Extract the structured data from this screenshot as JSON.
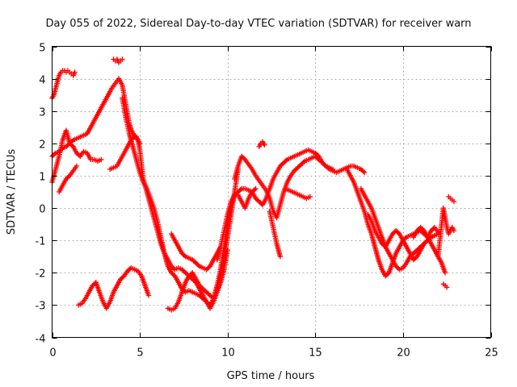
{
  "chart_data": {
    "type": "scatter",
    "title": "Day 055 of 2022, Sidereal Day-to-day VTEC variation (SDTVAR) for receiver warn",
    "xlabel": "GPS time / hours",
    "ylabel": "SDTVAR / TECUs",
    "xlim": [
      0,
      25
    ],
    "ylim": [
      -4,
      5
    ],
    "xticks": [
      0,
      5,
      10,
      15,
      20,
      25
    ],
    "yticks": [
      -4,
      -3,
      -2,
      -1,
      0,
      1,
      2,
      3,
      4,
      5
    ],
    "xtick_labels": [
      "0",
      "5",
      "10",
      "15",
      "20",
      "25"
    ],
    "ytick_labels": [
      "-4",
      "-3",
      "-2",
      "-1",
      "0",
      "1",
      "2",
      "3",
      "4",
      "5"
    ],
    "grid": true,
    "marker": "+",
    "color": "#ff0000",
    "series": [
      {
        "name": "trace-1",
        "x": [
          0.0,
          0.1,
          0.2,
          0.3,
          0.4,
          0.5,
          0.6,
          0.7,
          0.8,
          0.9,
          1.0,
          1.1,
          1.2,
          1.3
        ],
        "y": [
          3.4,
          3.5,
          3.7,
          3.9,
          4.1,
          4.2,
          4.25,
          4.25,
          4.2,
          4.25,
          4.2,
          4.15,
          4.1,
          4.2
        ]
      },
      {
        "name": "trace-2",
        "x": [
          0.0,
          0.2,
          0.4,
          0.6,
          0.8,
          1.0,
          1.2,
          1.4,
          1.6,
          1.8,
          2.0,
          2.2,
          2.4,
          2.6,
          2.8,
          3.0,
          3.2,
          3.4,
          3.6,
          3.8,
          4.0,
          4.2,
          4.4,
          4.6,
          4.8,
          5.0
        ],
        "y": [
          1.6,
          1.7,
          1.75,
          1.85,
          1.9,
          2.0,
          2.1,
          2.15,
          2.2,
          2.25,
          2.3,
          2.5,
          2.7,
          2.9,
          3.1,
          3.3,
          3.5,
          3.7,
          3.85,
          4.0,
          3.8,
          3.2,
          2.6,
          2.3,
          2.2,
          2.0
        ]
      },
      {
        "name": "trace-3",
        "x": [
          0.0,
          0.2,
          0.4,
          0.6,
          0.8,
          1.0,
          1.2,
          1.4,
          1.6,
          1.8,
          2.0,
          2.2,
          2.4,
          2.6,
          2.8
        ],
        "y": [
          0.8,
          1.2,
          1.6,
          2.1,
          2.4,
          2.0,
          1.9,
          1.7,
          1.6,
          1.75,
          1.7,
          1.5,
          1.5,
          1.45,
          1.5
        ]
      },
      {
        "name": "trace-4",
        "x": [
          0.4,
          0.6,
          0.8,
          1.0,
          1.2,
          1.4
        ],
        "y": [
          0.5,
          0.7,
          0.9,
          1.0,
          1.15,
          1.3
        ]
      },
      {
        "name": "trace-5",
        "x": [
          3.5,
          3.6,
          3.7,
          3.8,
          3.9,
          4.0
        ],
        "y": [
          4.6,
          4.55,
          4.6,
          4.5,
          4.55,
          4.6
        ]
      },
      {
        "name": "trace-6",
        "x": [
          3.3,
          3.5,
          3.7,
          3.9,
          4.1,
          4.3,
          4.5,
          4.7,
          4.9,
          5.0,
          5.1,
          5.2,
          5.4,
          5.6,
          5.8,
          6.0,
          6.2,
          6.4,
          6.6,
          6.8,
          7.0,
          7.2,
          7.4,
          7.6,
          7.8,
          8.0,
          8.2,
          8.4,
          8.6,
          8.8,
          9.0,
          9.2,
          9.4,
          9.6,
          9.8,
          10.0,
          10.2,
          10.4,
          10.6,
          10.8,
          11.0,
          11.2,
          11.4,
          11.6
        ],
        "y": [
          1.2,
          1.25,
          1.3,
          1.5,
          1.7,
          1.9,
          2.1,
          2.2,
          2.1,
          1.8,
          1.3,
          0.9,
          0.5,
          0.1,
          -0.3,
          -0.7,
          -1.1,
          -1.4,
          -1.6,
          -1.8,
          -1.9,
          -1.85,
          -1.9,
          -2.0,
          -2.1,
          -2.2,
          -2.3,
          -2.5,
          -2.7,
          -2.9,
          -3.0,
          -2.8,
          -2.4,
          -1.9,
          -1.2,
          -0.5,
          0.1,
          0.4,
          0.4,
          0.2,
          0.0,
          0.3,
          0.5,
          0.6
        ]
      },
      {
        "name": "trace-7",
        "x": [
          4.0,
          4.2,
          4.4,
          4.6,
          4.8,
          5.0,
          5.2,
          5.4,
          5.6,
          5.8,
          6.0,
          6.2,
          6.4,
          6.6,
          6.8,
          7.0,
          7.2,
          7.4,
          7.6,
          7.8,
          8.0,
          8.2,
          8.4,
          8.6,
          8.8,
          9.0,
          9.2,
          9.4,
          9.6,
          9.8,
          10.0,
          10.2,
          10.4,
          10.6
        ],
        "y": [
          3.4,
          2.8,
          2.3,
          1.9,
          1.5,
          1.1,
          0.8,
          0.6,
          0.3,
          0.0,
          -0.4,
          -0.9,
          -1.4,
          -1.8,
          -2.0,
          -2.1,
          -2.3,
          -2.5,
          -2.6,
          -2.55,
          -2.6,
          -2.65,
          -2.7,
          -2.8,
          -2.9,
          -3.1,
          -2.9,
          -2.6,
          -2.1,
          -1.6,
          -0.9,
          -0.2,
          0.5,
          1.2
        ]
      },
      {
        "name": "trace-8",
        "x": [
          1.5,
          1.7,
          1.9,
          2.1,
          2.3,
          2.5,
          2.7,
          2.9,
          3.1,
          3.3,
          3.5,
          3.7,
          3.9,
          4.1,
          4.3,
          4.5,
          4.7,
          4.9,
          5.1,
          5.3,
          5.5
        ],
        "y": [
          -3.0,
          -2.95,
          -2.8,
          -2.6,
          -2.4,
          -2.3,
          -2.6,
          -2.9,
          -3.1,
          -2.9,
          -2.6,
          -2.4,
          -2.2,
          -2.1,
          -1.95,
          -1.85,
          -1.9,
          -1.95,
          -2.1,
          -2.4,
          -2.7
        ]
      },
      {
        "name": "trace-9",
        "x": [
          6.6,
          6.8,
          7.0,
          7.2,
          7.4,
          7.6,
          7.8,
          8.0,
          8.2,
          8.4,
          8.6,
          8.8,
          9.0,
          9.2,
          9.4,
          9.6,
          9.8,
          10.0
        ],
        "y": [
          -3.1,
          -3.15,
          -3.1,
          -2.9,
          -2.6,
          -2.3,
          -2.1,
          -2.0,
          -2.2,
          -2.4,
          -2.5,
          -2.6,
          -2.7,
          -2.8,
          -2.6,
          -2.3,
          -1.9,
          -1.3
        ]
      },
      {
        "name": "trace-10",
        "x": [
          6.8,
          7.0,
          7.2,
          7.4,
          7.6,
          7.8,
          8.0,
          8.2,
          8.4,
          8.6,
          8.8,
          9.0,
          9.2,
          9.4,
          9.6
        ],
        "y": [
          -0.8,
          -1.0,
          -1.2,
          -1.4,
          -1.5,
          -1.55,
          -1.6,
          -1.7,
          -1.8,
          -1.85,
          -1.9,
          -1.8,
          -1.6,
          -1.4,
          -1.2
        ]
      },
      {
        "name": "trace-11",
        "x": [
          9.4,
          9.6,
          9.8,
          10.0,
          10.2,
          10.4,
          10.6,
          10.8,
          11.0,
          11.2,
          11.4,
          11.6,
          11.8,
          12.0,
          12.2,
          12.4,
          12.6,
          12.8,
          13.0,
          13.2,
          13.4,
          13.6,
          13.8,
          14.0,
          14.2,
          14.4,
          14.6,
          14.8,
          15.0,
          15.2,
          15.4,
          15.6,
          15.8,
          16.0,
          16.2,
          16.4,
          16.6,
          16.8,
          17.0,
          17.2,
          17.4,
          17.6,
          17.8
        ],
        "y": [
          -1.6,
          -1.2,
          -0.7,
          -0.2,
          0.2,
          0.4,
          0.5,
          0.6,
          0.6,
          0.55,
          0.5,
          0.3,
          0.2,
          0.1,
          0.3,
          0.6,
          0.9,
          1.1,
          1.3,
          1.4,
          1.5,
          1.55,
          1.6,
          1.65,
          1.7,
          1.75,
          1.8,
          1.75,
          1.7,
          1.6,
          1.4,
          1.3,
          1.2,
          1.15,
          1.1,
          1.15,
          1.2,
          1.25,
          1.3,
          1.3,
          1.25,
          1.2,
          1.1
        ]
      },
      {
        "name": "trace-12",
        "x": [
          10.4,
          10.6,
          10.8,
          11.0,
          11.2,
          11.4,
          11.6,
          11.8,
          12.0,
          12.2,
          12.4,
          12.6,
          12.8,
          13.0,
          13.2,
          13.4,
          13.6,
          13.8,
          14.0,
          14.2,
          14.4,
          14.6,
          14.8,
          15.0,
          15.2,
          15.4,
          15.6,
          15.8,
          16.0
        ],
        "y": [
          0.9,
          1.3,
          1.6,
          1.5,
          1.35,
          1.2,
          1.0,
          0.85,
          0.7,
          0.55,
          0.3,
          -0.1,
          -0.3,
          0.1,
          0.5,
          0.8,
          1.0,
          1.15,
          1.25,
          1.35,
          1.45,
          1.5,
          1.55,
          1.6,
          1.5,
          1.4,
          1.3,
          1.25,
          1.2
        ]
      },
      {
        "name": "trace-13",
        "x": [
          13.3,
          13.5,
          13.7,
          13.9,
          14.1,
          14.3,
          14.5,
          14.7
        ],
        "y": [
          0.6,
          0.55,
          0.5,
          0.45,
          0.4,
          0.35,
          0.3,
          0.35
        ]
      },
      {
        "name": "trace-14",
        "x": [
          12.4,
          12.6,
          12.8,
          13.0
        ],
        "y": [
          -0.1,
          -0.6,
          -1.1,
          -1.5
        ]
      },
      {
        "name": "trace-15",
        "x": [
          11.8,
          11.9,
          12.0,
          12.1
        ],
        "y": [
          1.9,
          2.0,
          2.05,
          1.95
        ]
      },
      {
        "name": "trace-16",
        "x": [
          16.8,
          17.0,
          17.2,
          17.4,
          17.6,
          17.8,
          18.0,
          18.2,
          18.4,
          18.6,
          18.8,
          19.0,
          19.2,
          19.4,
          19.6,
          19.8,
          20.0,
          20.2,
          20.4,
          20.6,
          20.8,
          21.0,
          21.2,
          21.4,
          21.6,
          21.8,
          22.0,
          22.2,
          22.4
        ],
        "y": [
          1.2,
          1.0,
          0.8,
          0.5,
          0.2,
          -0.1,
          -0.5,
          -0.8,
          -1.2,
          -1.6,
          -1.9,
          -2.1,
          -2.0,
          -1.7,
          -1.4,
          -1.2,
          -1.0,
          -0.9,
          -0.85,
          -0.8,
          -0.75,
          -0.7,
          -0.8,
          -0.9,
          -1.1,
          -1.3,
          -1.5,
          -1.7,
          -2.0
        ]
      },
      {
        "name": "trace-17",
        "x": [
          17.6,
          17.8,
          18.0,
          18.2,
          18.4,
          18.6,
          18.8,
          19.0,
          19.2,
          19.4,
          19.6,
          19.8,
          20.0,
          20.2,
          20.4,
          20.6,
          20.8,
          21.0,
          21.2,
          21.4,
          21.6,
          21.8,
          22.0
        ],
        "y": [
          0.6,
          0.4,
          0.2,
          0.0,
          -0.3,
          -0.6,
          -0.9,
          -1.2,
          -1.4,
          -1.6,
          -1.8,
          -1.9,
          -1.85,
          -1.7,
          -1.5,
          -1.4,
          -1.3,
          -1.2,
          -1.1,
          -1.0,
          -0.9,
          -0.85,
          -0.8
        ]
      },
      {
        "name": "trace-18",
        "x": [
          18.0,
          18.2,
          18.4,
          18.6,
          18.8,
          19.0,
          19.2,
          19.4,
          19.6,
          19.8,
          20.0,
          20.2,
          20.4,
          20.6,
          20.8,
          21.0,
          21.2,
          21.4,
          21.6,
          21.8
        ],
        "y": [
          -0.2,
          -0.4,
          -0.7,
          -0.9,
          -1.1,
          -1.2,
          -1.0,
          -0.8,
          -0.7,
          -0.8,
          -1.0,
          -1.2,
          -1.4,
          -1.6,
          -1.5,
          -1.3,
          -1.1,
          -1.0,
          -0.9,
          -0.85
        ]
      },
      {
        "name": "trace-19",
        "x": [
          20.6,
          20.8,
          21.0,
          21.2,
          21.4,
          21.6,
          21.8,
          22.0
        ],
        "y": [
          -0.9,
          -0.7,
          -0.6,
          -0.7,
          -0.9,
          -0.7,
          -0.6,
          -0.75
        ]
      },
      {
        "name": "trace-20",
        "x": [
          22.0,
          22.1,
          22.2,
          22.3,
          22.4,
          22.5,
          22.6,
          22.7,
          22.8,
          22.9
        ],
        "y": [
          -1.5,
          -1.0,
          -0.5,
          0.0,
          -0.3,
          -0.6,
          -0.8,
          -0.7,
          -0.6,
          -0.7
        ]
      },
      {
        "name": "trace-21",
        "x": [
          22.3,
          22.4,
          22.5
        ],
        "y": [
          -2.35,
          -2.4,
          -2.45
        ]
      },
      {
        "name": "trace-22",
        "x": [
          22.6,
          22.7,
          22.8,
          22.9
        ],
        "y": [
          0.35,
          0.3,
          0.25,
          0.2
        ]
      }
    ]
  }
}
